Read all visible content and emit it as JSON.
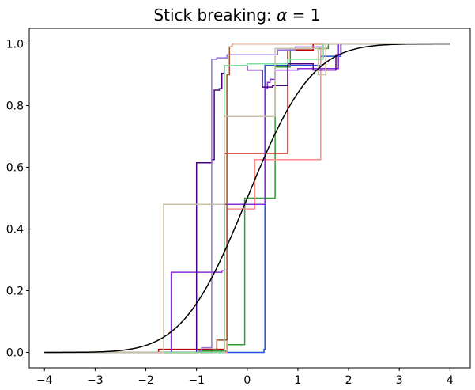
{
  "chart_data": {
    "type": "line",
    "title_prefix": "Stick breaking: ",
    "title_symbol": "α",
    "title_suffix": " = 1",
    "xlabel": "",
    "ylabel": "",
    "xlim": [
      -4.3,
      4.4
    ],
    "ylim": [
      -0.05,
      1.05
    ],
    "x_ticks": [
      -4,
      -3,
      -2,
      -1,
      0,
      1,
      2,
      3,
      4
    ],
    "x_tick_labels": [
      "−4",
      "−3",
      "−2",
      "−1",
      "0",
      "1",
      "2",
      "3",
      "4"
    ],
    "y_ticks": [
      0.0,
      0.2,
      0.4,
      0.6,
      0.8,
      1.0
    ],
    "y_tick_labels": [
      "0.0",
      "0.2",
      "0.4",
      "0.6",
      "0.8",
      "1.0"
    ],
    "grid": false,
    "legend": false,
    "reference_curve": {
      "description": "standard normal CDF",
      "color": "#000000",
      "x_range": [
        -4,
        4
      ]
    },
    "step_series": [
      {
        "color": "#1f4fd8",
        "steps": [
          [
            0.33,
            0.01
          ],
          [
            0.35,
            0.93
          ],
          [
            1.45,
            0.96
          ],
          [
            1.85,
            1.0
          ]
        ]
      },
      {
        "color": "#2ca02c",
        "steps": [
          [
            -0.9,
            0.005
          ],
          [
            -0.4,
            0.025
          ],
          [
            -0.05,
            0.5
          ],
          [
            0.55,
            0.925
          ],
          [
            0.85,
            0.985
          ],
          [
            1.6,
            1.0
          ]
        ]
      },
      {
        "color": "#c00000",
        "steps": [
          [
            -1.75,
            0.01
          ],
          [
            -0.45,
            0.645
          ],
          [
            0.8,
            0.98
          ],
          [
            1.3,
            1.0
          ]
        ]
      },
      {
        "color": "#ff8a8a",
        "steps": [
          [
            -0.4,
            0.465
          ],
          [
            0.15,
            0.625
          ],
          [
            1.45,
            0.985
          ],
          [
            1.55,
            1.0
          ]
        ]
      },
      {
        "color": "#8a2be2",
        "steps": [
          [
            -1.5,
            0.26
          ],
          [
            -0.5,
            0.265
          ],
          [
            -0.45,
            0.48
          ],
          [
            0.35,
            0.855
          ],
          [
            0.4,
            0.875
          ],
          [
            0.45,
            0.885
          ],
          [
            0.55,
            0.915
          ],
          [
            1.0,
            0.92
          ],
          [
            1.8,
            1.0
          ]
        ]
      },
      {
        "color": "#4b0082",
        "steps": [
          [
            -1.0,
            0.615
          ],
          [
            -0.7,
            0.625
          ],
          [
            -0.65,
            0.85
          ],
          [
            -0.55,
            0.855
          ],
          [
            -0.5,
            0.905
          ],
          [
            -0.45,
            0.93
          ],
          [
            0.0,
            0.915
          ],
          [
            0.3,
            0.86
          ],
          [
            0.5,
            0.865
          ],
          [
            0.8,
            0.935
          ],
          [
            1.3,
            0.915
          ],
          [
            1.75,
            0.965
          ],
          [
            1.85,
            1.0
          ]
        ]
      },
      {
        "color": "#9370db",
        "steps": [
          [
            -0.95,
            0.005
          ],
          [
            -0.9,
            0.015
          ],
          [
            -0.7,
            0.95
          ],
          [
            -0.6,
            0.955
          ],
          [
            -0.4,
            0.965
          ],
          [
            0.6,
            0.98
          ],
          [
            0.95,
            0.99
          ],
          [
            1.5,
            1.0
          ]
        ]
      },
      {
        "color": "#a0522d",
        "steps": [
          [
            -0.7,
            0.01
          ],
          [
            -0.6,
            0.04
          ],
          [
            -0.4,
            0.9
          ],
          [
            -0.35,
            0.99
          ],
          [
            -0.3,
            1.0
          ]
        ]
      },
      {
        "color": "#7fe0a0",
        "steps": [
          [
            -0.45,
            0.93
          ],
          [
            0.0,
            0.935
          ],
          [
            0.8,
            0.95
          ],
          [
            1.5,
            1.0
          ]
        ]
      },
      {
        "color": "#cbbfa8",
        "steps": [
          [
            -1.65,
            0.48
          ],
          [
            -0.45,
            0.765
          ],
          [
            0.55,
            0.985
          ],
          [
            1.4,
            0.9
          ],
          [
            1.55,
            1.0
          ]
        ]
      }
    ]
  }
}
